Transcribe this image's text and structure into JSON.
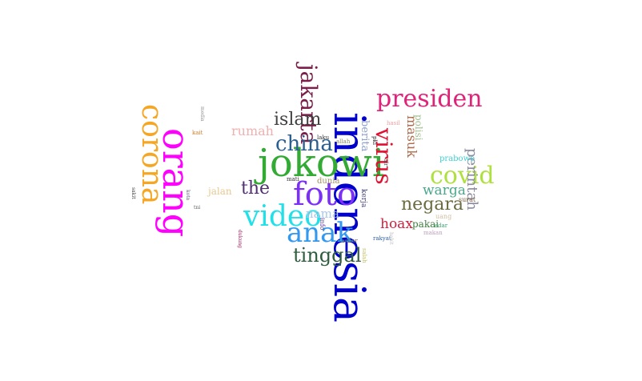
{
  "words": [
    {
      "text": "indonesia",
      "color": "#0000cc",
      "vertical": true
    },
    {
      "text": "jokowi",
      "color": "#33aa33",
      "vertical": false
    },
    {
      "text": "orang",
      "color": "#ff00ff",
      "vertical": true
    },
    {
      "text": "corona",
      "color": "#f5a623",
      "vertical": true
    },
    {
      "text": "foto",
      "color": "#7b2ff7",
      "vertical": false
    },
    {
      "text": "video",
      "color": "#22e0e8",
      "vertical": false
    },
    {
      "text": "anak",
      "color": "#3399ee",
      "vertical": false
    },
    {
      "text": "presiden",
      "color": "#e0237a",
      "vertical": false
    },
    {
      "text": "jakarta",
      "color": "#7a1f4a",
      "vertical": true
    },
    {
      "text": "china",
      "color": "#2b5f8f",
      "vertical": false
    },
    {
      "text": "islam",
      "color": "#404040",
      "vertical": false
    },
    {
      "text": "the",
      "color": "#503070",
      "vertical": false
    },
    {
      "text": "tinggal",
      "color": "#2e5e3e",
      "vertical": false
    },
    {
      "text": "virus",
      "color": "#e01030",
      "vertical": true
    },
    {
      "text": "covid",
      "color": "#b0e040",
      "vertical": false
    },
    {
      "text": "negara",
      "color": "#6b6b40",
      "vertical": false
    },
    {
      "text": "warga",
      "color": "#4aa88a",
      "vertical": false
    },
    {
      "text": "perintah",
      "color": "#8a8aa0",
      "vertical": true
    },
    {
      "text": "hoax",
      "color": "#d02040",
      "vertical": false
    },
    {
      "text": "nama",
      "color": "#aac8e8",
      "vertical": false
    },
    {
      "text": "masuk",
      "color": "#b06a4a",
      "vertical": true
    },
    {
      "text": "berita",
      "color": "#90a0d0",
      "vertical": true
    },
    {
      "text": "rumah",
      "color": "#f0b0b0",
      "vertical": false
    },
    {
      "text": "jalan",
      "color": "#e8c890",
      "vertical": false
    },
    {
      "text": "polisi",
      "color": "#a0c090",
      "vertical": true
    },
    {
      "text": "pakai",
      "color": "#408040",
      "vertical": false
    },
    {
      "text": "prabowo",
      "color": "#40d0d0",
      "vertical": false
    },
    {
      "text": "dunia",
      "color": "#a09060",
      "vertical": false
    },
    {
      "text": "kerja",
      "color": "#404080",
      "vertical": true
    },
    {
      "text": "info",
      "color": "#6040a0",
      "vertical": true
    },
    {
      "text": "uang",
      "color": "#d0c0a0",
      "vertical": false
    },
    {
      "text": "surat",
      "color": "#806040",
      "vertical": false
    },
    {
      "text": "makan",
      "color": "#c0a0c0",
      "vertical": false
    },
    {
      "text": "edar",
      "color": "#40a070",
      "vertical": false
    },
    {
      "text": "rakyat",
      "color": "#3060a0",
      "vertical": false
    },
    {
      "text": "sebar",
      "color": "#606060",
      "vertical": false
    },
    {
      "text": "salah",
      "color": "#c0c060",
      "vertical": true
    },
    {
      "text": "hasil",
      "color": "#f0a0a0",
      "vertical": false
    },
    {
      "text": "pki",
      "color": "#303030",
      "vertical": true
    },
    {
      "text": "air",
      "color": "#505050",
      "vertical": true
    },
    {
      "text": "laku",
      "color": "#303030",
      "vertical": false
    },
    {
      "text": "allah",
      "color": "#808060",
      "vertical": false
    },
    {
      "text": "mati",
      "color": "#303030",
      "vertical": false
    },
    {
      "text": "kait",
      "color": "#d08030",
      "vertical": false
    },
    {
      "text": "media",
      "color": "#909090",
      "vertical": true
    },
    {
      "text": "kota",
      "color": "#606080",
      "vertical": true
    },
    {
      "text": "tni",
      "color": "#606060",
      "vertical": false
    },
    {
      "text": "sakit",
      "color": "#404040",
      "vertical": true
    },
    {
      "text": "dukung",
      "color": "#a02060",
      "vertical": true
    },
    {
      "text": "habit",
      "color": "#c0c0c0",
      "vertical": true
    }
  ]
}
